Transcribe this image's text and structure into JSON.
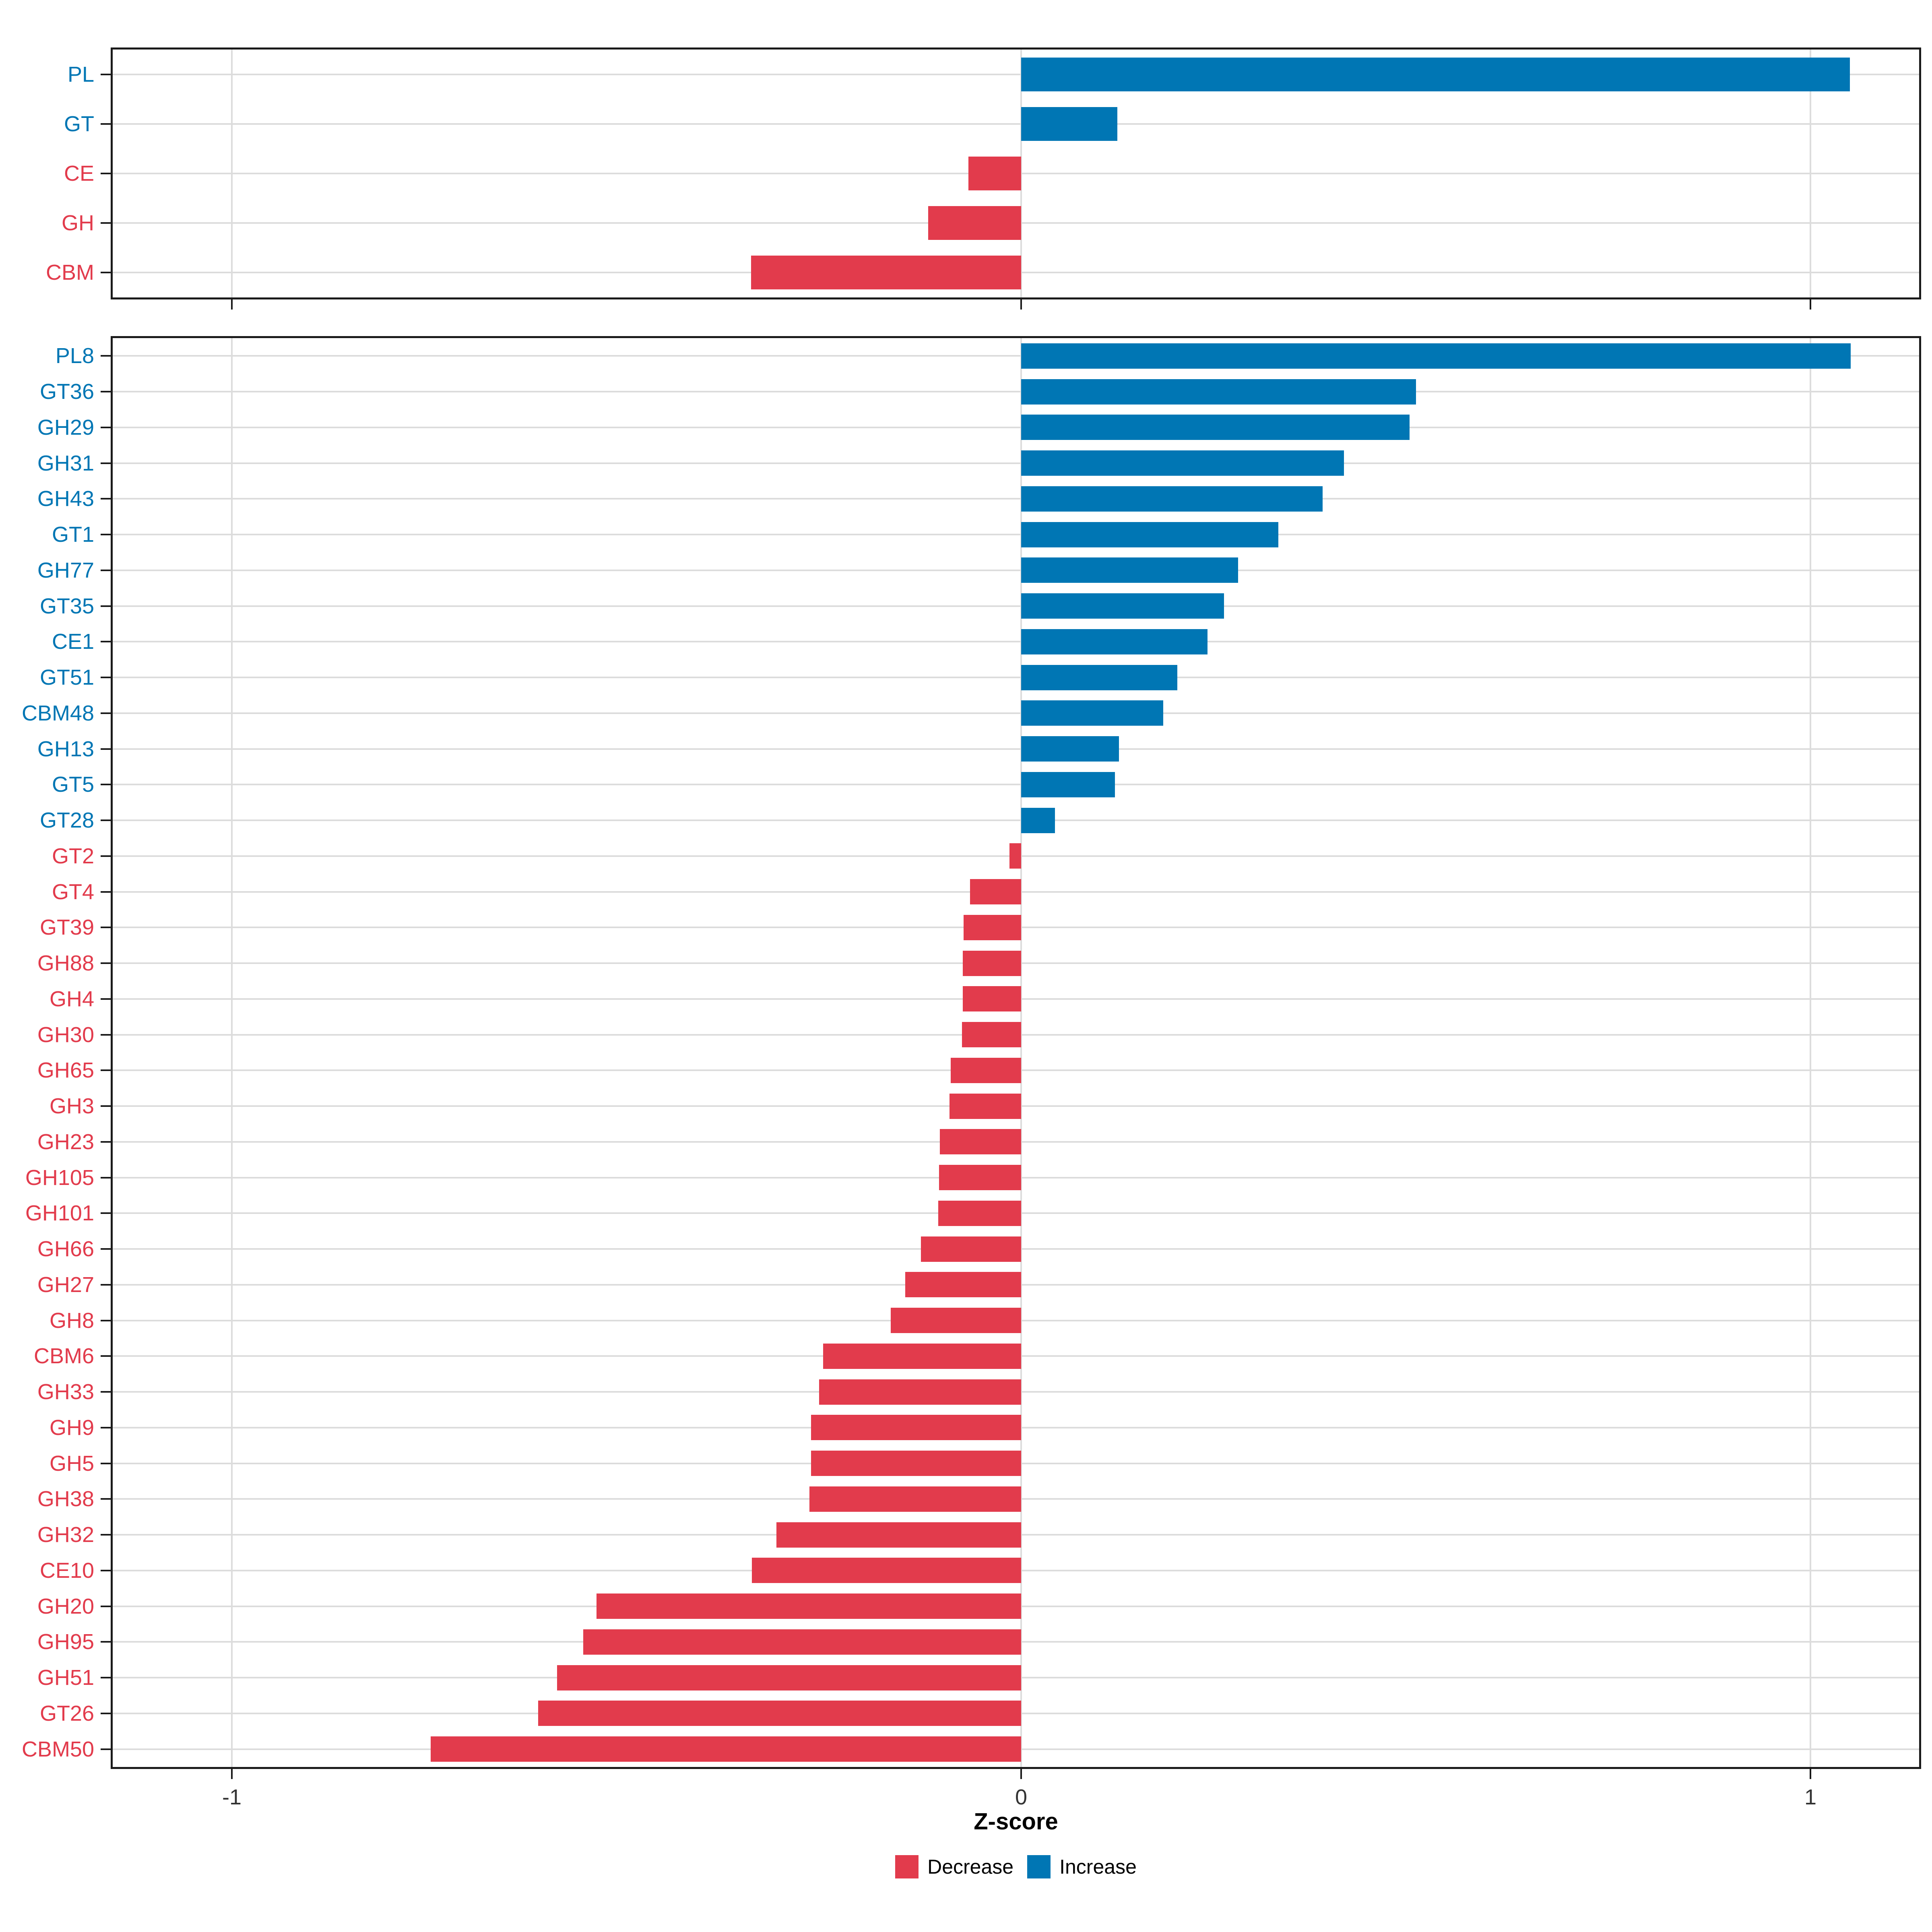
{
  "axis": {
    "xlabel": "Z-score",
    "ticks": [
      {
        "value": -1,
        "label": "-1"
      },
      {
        "value": 0,
        "label": "0"
      },
      {
        "value": 1,
        "label": "1"
      }
    ],
    "xlim": [
      -1.15,
      1.14
    ],
    "grid": "major gridlines at category centers and x ticks"
  },
  "legend": {
    "position": "bottom-center",
    "items": [
      {
        "label": "Decrease",
        "color": "#E23B4C"
      },
      {
        "label": "Increase",
        "color": "#0076B4"
      }
    ]
  },
  "colors": {
    "increase": "#0076B4",
    "decrease": "#E23B4C",
    "grid": "#DCDCDC",
    "panel_border": "#1A1A1A",
    "tick_label": "#333333",
    "background": "#FFFFFF"
  },
  "chart_data": [
    {
      "type": "bar",
      "orientation": "horizontal",
      "panel": "top",
      "title": "",
      "xlabel": "Z-score",
      "categories": [
        "PL",
        "GT",
        "CE",
        "GH",
        "CBM"
      ],
      "values": [
        1.05,
        0.122,
        -0.067,
        -0.118,
        -0.342
      ],
      "xlim": [
        -1.15,
        1.14
      ],
      "legend_rule": "positive = Increase (blue), negative = Decrease (red)"
    },
    {
      "type": "bar",
      "orientation": "horizontal",
      "panel": "bottom",
      "title": "",
      "xlabel": "Z-score",
      "categories": [
        "PL8",
        "GT36",
        "GH29",
        "GH31",
        "GH43",
        "GT1",
        "GH77",
        "GT35",
        "CE1",
        "GT51",
        "CBM48",
        "GH13",
        "GT5",
        "GT28",
        "GT2",
        "GT4",
        "GT39",
        "GH88",
        "GH4",
        "GH30",
        "GH65",
        "GH3",
        "GH23",
        "GH105",
        "GH101",
        "GH66",
        "GH27",
        "GH8",
        "CBM6",
        "GH33",
        "GH9",
        "GH5",
        "GH38",
        "GH32",
        "CE10",
        "GH20",
        "GH95",
        "GH51",
        "GT26",
        "CBM50"
      ],
      "values": [
        1.051,
        0.5,
        0.492,
        0.409,
        0.382,
        0.326,
        0.275,
        0.257,
        0.236,
        0.198,
        0.18,
        0.124,
        0.119,
        0.043,
        -0.015,
        -0.065,
        -0.073,
        -0.074,
        -0.074,
        -0.075,
        -0.089,
        -0.091,
        -0.103,
        -0.104,
        -0.105,
        -0.127,
        -0.147,
        -0.165,
        -0.251,
        -0.256,
        -0.266,
        -0.266,
        -0.268,
        -0.31,
        -0.341,
        -0.538,
        -0.555,
        -0.588,
        -0.612,
        -0.748
      ],
      "xlim": [
        -1.15,
        1.14
      ],
      "legend_rule": "positive = Increase (blue), negative = Decrease (red)"
    }
  ]
}
